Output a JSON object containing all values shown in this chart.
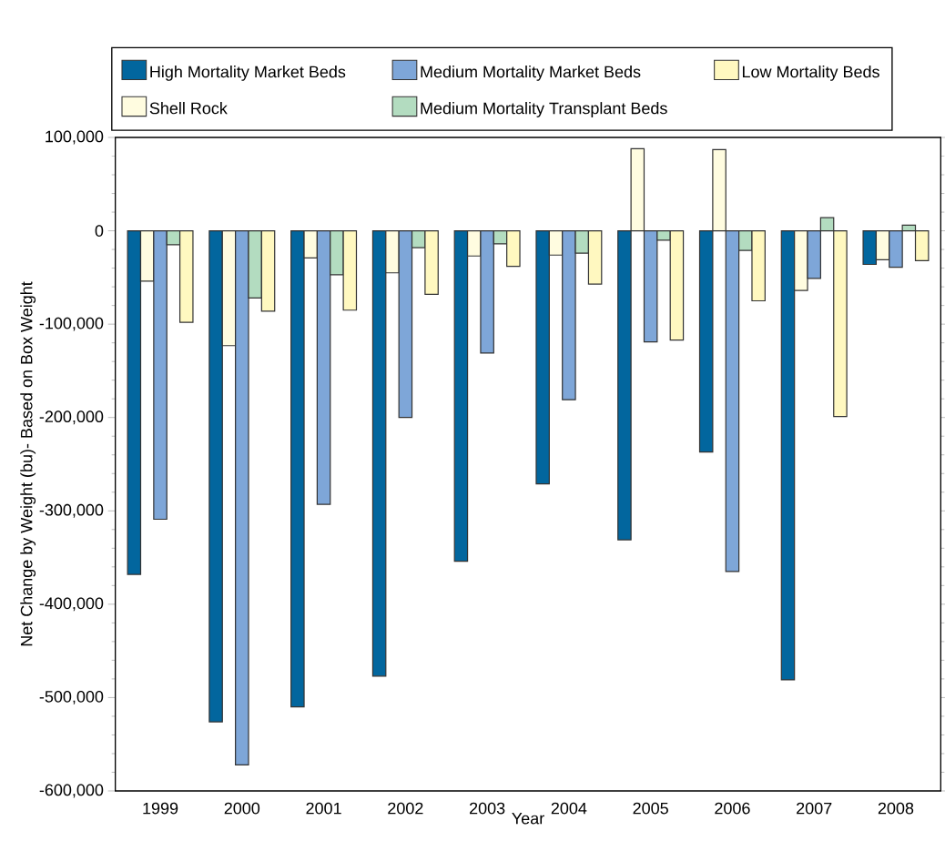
{
  "chart_data": {
    "type": "bar",
    "xlabel": "Year",
    "ylabel": "Net Change by Weight (bu)- Based on Box Weight",
    "categories": [
      "1999",
      "2000",
      "2001",
      "2002",
      "2003",
      "2004",
      "2005",
      "2006",
      "2007",
      "2008"
    ],
    "series": [
      {
        "name": "High Mortality Market Beds",
        "color": "#02669e",
        "values": [
          -368000,
          -526000,
          -510000,
          -477000,
          -354000,
          -271000,
          -331000,
          -237000,
          -481000,
          -36000
        ]
      },
      {
        "name": "Shell Rock",
        "color": "#fffce0",
        "values": [
          -54000,
          -123000,
          -29000,
          -45000,
          -27000,
          -26000,
          88000,
          87000,
          -64000,
          -31000
        ]
      },
      {
        "name": "Medium Mortality Market Beds",
        "color": "#7ea6d8",
        "values": [
          -309000,
          -572000,
          -293000,
          -200000,
          -131000,
          -181000,
          -119000,
          -365000,
          -51000,
          -39000
        ]
      },
      {
        "name": "Medium Mortality Transplant Beds",
        "color": "#b3dcc0",
        "values": [
          -15000,
          -72000,
          -47000,
          -18000,
          -14000,
          -24000,
          -10000,
          -21000,
          14000,
          6000
        ]
      },
      {
        "name": "Low Mortality Beds",
        "color": "#fff8c0",
        "values": [
          -98000,
          -86000,
          -85000,
          -68000,
          -38000,
          -57000,
          -117000,
          -75000,
          -199000,
          -32000
        ]
      }
    ],
    "ylim": [
      -600000,
      100000
    ],
    "yticks": [
      {
        "value": -600000,
        "label": "-600,000"
      },
      {
        "value": -500000,
        "label": "-500,000"
      },
      {
        "value": -400000,
        "label": "-400,000"
      },
      {
        "value": -300000,
        "label": "-300,000"
      },
      {
        "value": -200000,
        "label": "-200,000"
      },
      {
        "value": -100000,
        "label": "-100,000"
      },
      {
        "value": 0,
        "label": "0"
      },
      {
        "value": 100000,
        "label": "100,000"
      }
    ],
    "legend": "top",
    "grid": false
  }
}
